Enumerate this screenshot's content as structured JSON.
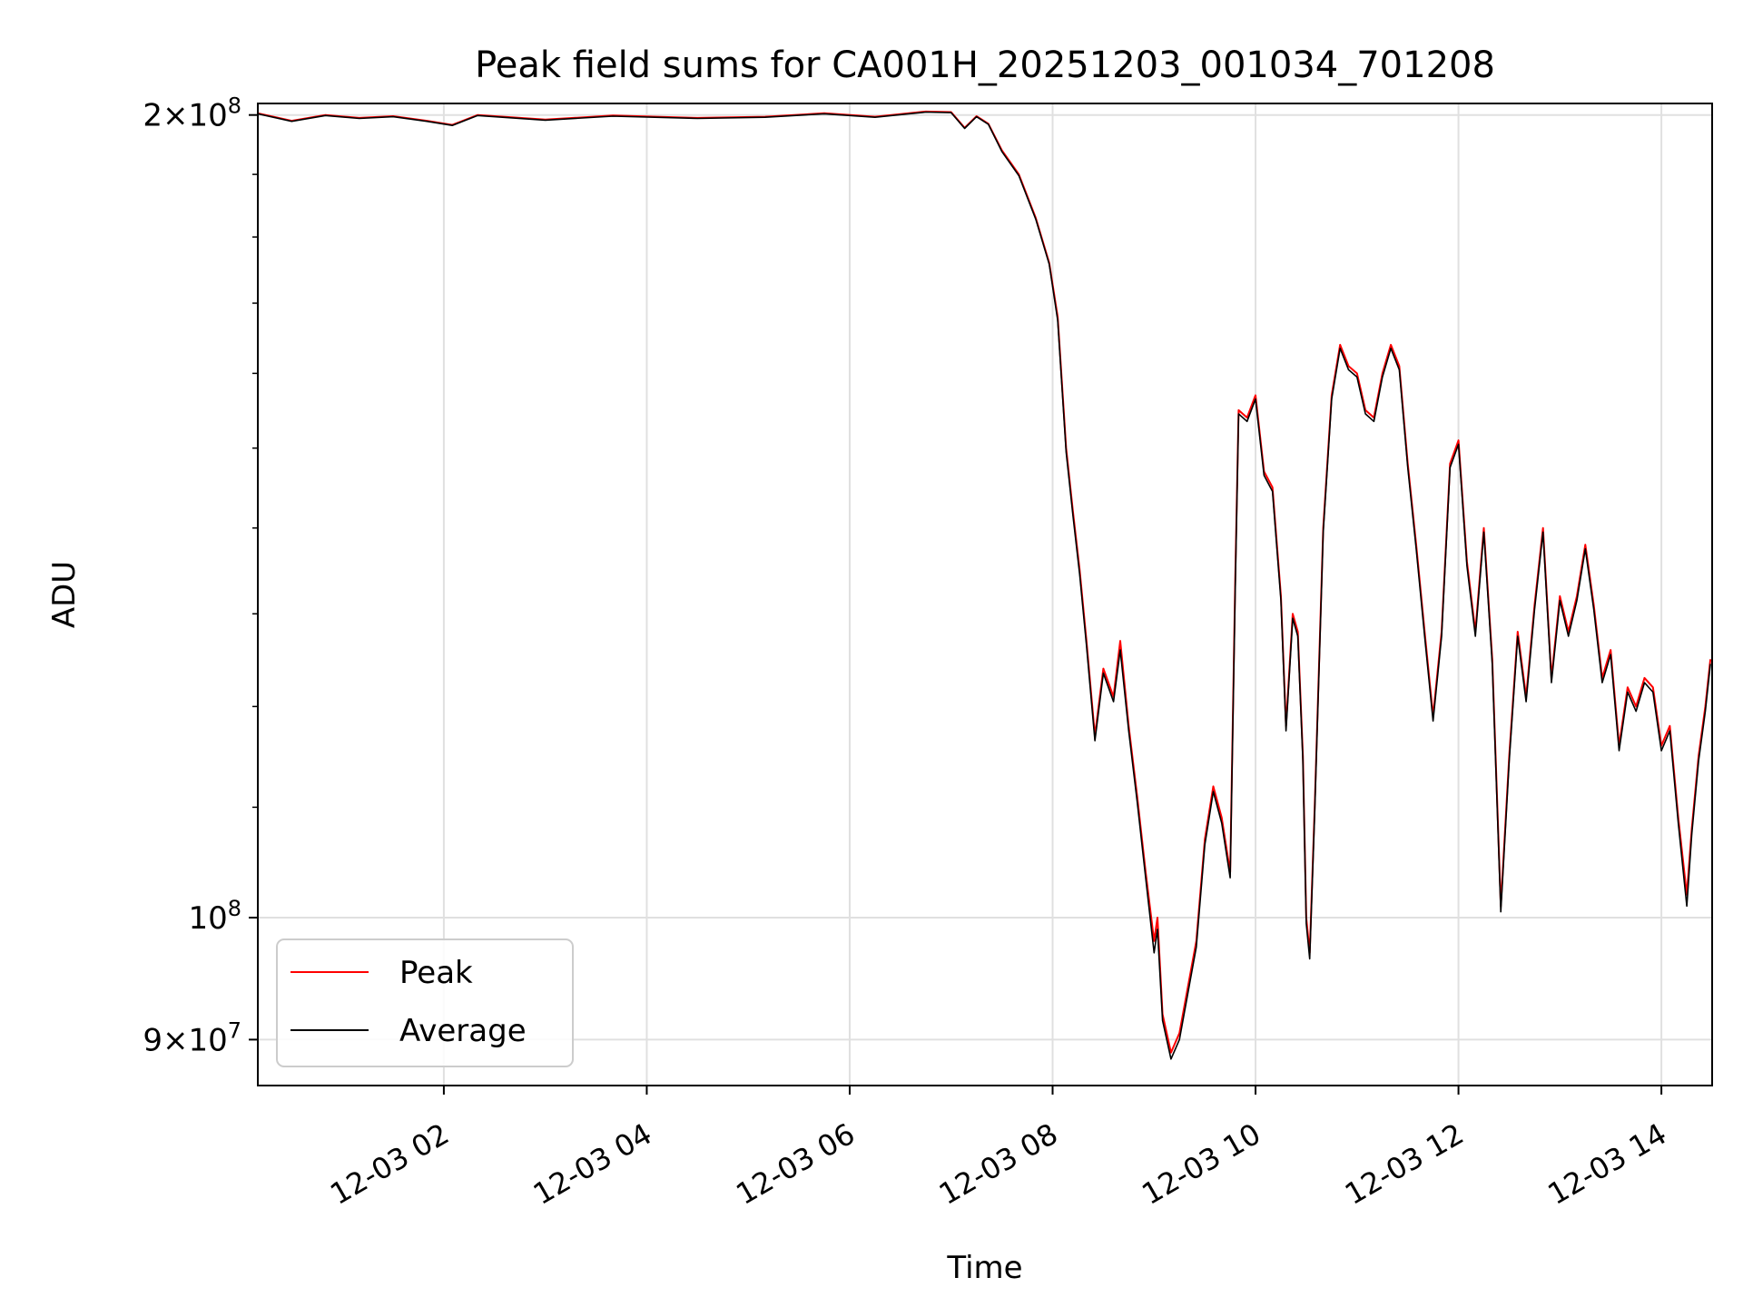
{
  "chart_data": {
    "type": "line",
    "title": "Peak field sums for CA001H_20251203_001034_701208",
    "xlabel": "Time",
    "ylabel": "ADU",
    "y_scale": "log",
    "x_range": [
      "12-03 00:10",
      "12-03 14:30"
    ],
    "ylim": [
      86500000,
      202000000
    ],
    "x_ticks": [
      {
        "value": "12-03 02:00",
        "label": "12-03 02"
      },
      {
        "value": "12-03 04:00",
        "label": "12-03 04"
      },
      {
        "value": "12-03 06:00",
        "label": "12-03 06"
      },
      {
        "value": "12-03 08:00",
        "label": "12-03 08"
      },
      {
        "value": "12-03 10:00",
        "label": "12-03 10"
      },
      {
        "value": "12-03 12:00",
        "label": "12-03 12"
      },
      {
        "value": "12-03 14:00",
        "label": "12-03 14"
      }
    ],
    "y_ticks_major": [
      {
        "value": 200000000,
        "mantissa": "2",
        "exponent": "8"
      },
      {
        "value": 100000000,
        "mantissa": "",
        "exponent": "8"
      },
      {
        "value": 90000000,
        "mantissa": "9",
        "exponent": "7"
      }
    ],
    "y_ticks_minor": [
      110000000,
      120000000,
      130000000,
      140000000,
      150000000,
      160000000,
      170000000,
      180000000,
      190000000
    ],
    "grid": true,
    "legend_position": "lower-left",
    "colors": {
      "peak": "#ff0000",
      "average": "#000000",
      "grid": "#e0e0e0"
    },
    "series": [
      {
        "name": "Peak",
        "color": "#ff0000",
        "points": [
          [
            "12-03 00:10",
            200300000
          ],
          [
            "12-03 00:30",
            199000000
          ],
          [
            "12-03 00:50",
            200000000
          ],
          [
            "12-03 01:10",
            199500000
          ],
          [
            "12-03 01:30",
            199800000
          ],
          [
            "12-03 01:50",
            199000000
          ],
          [
            "12-03 02:05",
            198300000
          ],
          [
            "12-03 02:20",
            200000000
          ],
          [
            "12-03 03:00",
            199200000
          ],
          [
            "12-03 03:40",
            199900000
          ],
          [
            "12-03 04:30",
            199500000
          ],
          [
            "12-03 05:10",
            199700000
          ],
          [
            "12-03 05:45",
            200300000
          ],
          [
            "12-03 06:15",
            199700000
          ],
          [
            "12-03 06:45",
            200600000
          ],
          [
            "12-03 07:00",
            200500000
          ],
          [
            "12-03 07:08",
            197800000
          ],
          [
            "12-03 07:15",
            199800000
          ],
          [
            "12-03 07:22",
            198500000
          ],
          [
            "12-03 07:30",
            194000000
          ],
          [
            "12-03 07:40",
            190000000
          ],
          [
            "12-03 07:50",
            183000000
          ],
          [
            "12-03 07:58",
            176000000
          ],
          [
            "12-03 08:03",
            168000000
          ],
          [
            "12-03 08:08",
            150000000
          ],
          [
            "12-03 08:12",
            142000000
          ],
          [
            "12-03 08:16",
            135000000
          ],
          [
            "12-03 08:20",
            127000000
          ],
          [
            "12-03 08:25",
            117000000
          ],
          [
            "12-03 08:30",
            124000000
          ],
          [
            "12-03 08:36",
            121000000
          ],
          [
            "12-03 08:40",
            127000000
          ],
          [
            "12-03 08:45",
            118000000
          ],
          [
            "12-03 08:50",
            111000000
          ],
          [
            "12-03 08:55",
            104000000
          ],
          [
            "12-03 09:00",
            98000000
          ],
          [
            "12-03 09:02",
            100000000
          ],
          [
            "12-03 09:05",
            92000000
          ],
          [
            "12-03 09:10",
            89000000
          ],
          [
            "12-03 09:15",
            90500000
          ],
          [
            "12-03 09:25",
            98000000
          ],
          [
            "12-03 09:30",
            107000000
          ],
          [
            "12-03 09:35",
            112000000
          ],
          [
            "12-03 09:40",
            109000000
          ],
          [
            "12-03 09:45",
            104000000
          ],
          [
            "12-03 09:48",
            134000000
          ],
          [
            "12-03 09:50",
            155000000
          ],
          [
            "12-03 09:55",
            154000000
          ],
          [
            "12-03 10:00",
            157000000
          ],
          [
            "12-03 10:05",
            147000000
          ],
          [
            "12-03 10:10",
            145000000
          ],
          [
            "12-03 10:15",
            132000000
          ],
          [
            "12-03 10:18",
            118000000
          ],
          [
            "12-03 10:22",
            130000000
          ],
          [
            "12-03 10:25",
            128000000
          ],
          [
            "12-03 10:28",
            115000000
          ],
          [
            "12-03 10:30",
            100000000
          ],
          [
            "12-03 10:32",
            97000000
          ],
          [
            "12-03 10:35",
            110000000
          ],
          [
            "12-03 10:40",
            140000000
          ],
          [
            "12-03 10:45",
            157000000
          ],
          [
            "12-03 10:50",
            164000000
          ],
          [
            "12-03 10:55",
            161000000
          ],
          [
            "12-03 11:00",
            160000000
          ],
          [
            "12-03 11:05",
            155000000
          ],
          [
            "12-03 11:10",
            154000000
          ],
          [
            "12-03 11:15",
            160000000
          ],
          [
            "12-03 11:20",
            164000000
          ],
          [
            "12-03 11:25",
            161000000
          ],
          [
            "12-03 11:30",
            148000000
          ],
          [
            "12-03 11:35",
            138000000
          ],
          [
            "12-03 11:40",
            128000000
          ],
          [
            "12-03 11:45",
            119000000
          ],
          [
            "12-03 11:50",
            128000000
          ],
          [
            "12-03 11:55",
            148000000
          ],
          [
            "12-03 12:00",
            151000000
          ],
          [
            "12-03 12:05",
            136000000
          ],
          [
            "12-03 12:10",
            128000000
          ],
          [
            "12-03 12:15",
            140000000
          ],
          [
            "12-03 12:20",
            125000000
          ],
          [
            "12-03 12:25",
            101000000
          ],
          [
            "12-03 12:30",
            115000000
          ],
          [
            "12-03 12:35",
            128000000
          ],
          [
            "12-03 12:40",
            121000000
          ],
          [
            "12-03 12:45",
            131000000
          ],
          [
            "12-03 12:50",
            140000000
          ],
          [
            "12-03 12:55",
            123000000
          ],
          [
            "12-03 13:00",
            132000000
          ],
          [
            "12-03 13:05",
            128000000
          ],
          [
            "12-03 13:10",
            132000000
          ],
          [
            "12-03 13:15",
            138000000
          ],
          [
            "12-03 13:20",
            131000000
          ],
          [
            "12-03 13:25",
            123000000
          ],
          [
            "12-03 13:30",
            126000000
          ],
          [
            "12-03 13:35",
            116000000
          ],
          [
            "12-03 13:40",
            122000000
          ],
          [
            "12-03 13:45",
            120000000
          ],
          [
            "12-03 13:50",
            123000000
          ],
          [
            "12-03 13:55",
            122000000
          ],
          [
            "12-03 14:00",
            116000000
          ],
          [
            "12-03 14:05",
            118000000
          ],
          [
            "12-03 14:10",
            109000000
          ],
          [
            "12-03 14:15",
            102000000
          ],
          [
            "12-03 14:18",
            108000000
          ],
          [
            "12-03 14:22",
            115000000
          ],
          [
            "12-03 14:26",
            120000000
          ],
          [
            "12-03 14:29",
            125000000
          ]
        ]
      },
      {
        "name": "Average",
        "color": "#000000",
        "points": [
          [
            "12-03 00:10",
            200200000
          ],
          [
            "12-03 00:30",
            198900000
          ],
          [
            "12-03 00:50",
            199900000
          ],
          [
            "12-03 01:10",
            199400000
          ],
          [
            "12-03 01:30",
            199700000
          ],
          [
            "12-03 01:50",
            198900000
          ],
          [
            "12-03 02:05",
            198200000
          ],
          [
            "12-03 02:20",
            199900000
          ],
          [
            "12-03 03:00",
            199100000
          ],
          [
            "12-03 03:40",
            199800000
          ],
          [
            "12-03 04:30",
            199400000
          ],
          [
            "12-03 05:10",
            199600000
          ],
          [
            "12-03 05:45",
            200200000
          ],
          [
            "12-03 06:15",
            199600000
          ],
          [
            "12-03 06:45",
            200500000
          ],
          [
            "12-03 07:00",
            200400000
          ],
          [
            "12-03 07:08",
            197700000
          ],
          [
            "12-03 07:15",
            199700000
          ],
          [
            "12-03 07:22",
            198400000
          ],
          [
            "12-03 07:30",
            193800000
          ],
          [
            "12-03 07:40",
            189800000
          ],
          [
            "12-03 07:50",
            182800000
          ],
          [
            "12-03 07:58",
            175800000
          ],
          [
            "12-03 08:03",
            167500000
          ],
          [
            "12-03 08:08",
            149500000
          ],
          [
            "12-03 08:12",
            141500000
          ],
          [
            "12-03 08:16",
            134500000
          ],
          [
            "12-03 08:20",
            126500000
          ],
          [
            "12-03 08:25",
            116500000
          ],
          [
            "12-03 08:30",
            123500000
          ],
          [
            "12-03 08:36",
            120500000
          ],
          [
            "12-03 08:40",
            126000000
          ],
          [
            "12-03 08:45",
            117500000
          ],
          [
            "12-03 08:50",
            110500000
          ],
          [
            "12-03 08:55",
            103500000
          ],
          [
            "12-03 09:00",
            97000000
          ],
          [
            "12-03 09:02",
            99000000
          ],
          [
            "12-03 09:05",
            91500000
          ],
          [
            "12-03 09:10",
            88500000
          ],
          [
            "12-03 09:15",
            90000000
          ],
          [
            "12-03 09:25",
            97500000
          ],
          [
            "12-03 09:30",
            106500000
          ],
          [
            "12-03 09:35",
            111500000
          ],
          [
            "12-03 09:40",
            108500000
          ],
          [
            "12-03 09:45",
            103500000
          ],
          [
            "12-03 09:48",
            133000000
          ],
          [
            "12-03 09:50",
            154500000
          ],
          [
            "12-03 09:55",
            153500000
          ],
          [
            "12-03 10:00",
            156500000
          ],
          [
            "12-03 10:05",
            146500000
          ],
          [
            "12-03 10:10",
            144500000
          ],
          [
            "12-03 10:15",
            131500000
          ],
          [
            "12-03 10:18",
            117500000
          ],
          [
            "12-03 10:22",
            129500000
          ],
          [
            "12-03 10:25",
            127500000
          ],
          [
            "12-03 10:28",
            114500000
          ],
          [
            "12-03 10:30",
            99500000
          ],
          [
            "12-03 10:32",
            96500000
          ],
          [
            "12-03 10:35",
            109500000
          ],
          [
            "12-03 10:40",
            139500000
          ],
          [
            "12-03 10:45",
            156500000
          ],
          [
            "12-03 10:50",
            163500000
          ],
          [
            "12-03 10:55",
            160500000
          ],
          [
            "12-03 11:00",
            159500000
          ],
          [
            "12-03 11:05",
            154500000
          ],
          [
            "12-03 11:10",
            153500000
          ],
          [
            "12-03 11:15",
            159500000
          ],
          [
            "12-03 11:20",
            163500000
          ],
          [
            "12-03 11:25",
            160500000
          ],
          [
            "12-03 11:30",
            147500000
          ],
          [
            "12-03 11:35",
            137500000
          ],
          [
            "12-03 11:40",
            127500000
          ],
          [
            "12-03 11:45",
            118500000
          ],
          [
            "12-03 11:50",
            127500000
          ],
          [
            "12-03 11:55",
            147500000
          ],
          [
            "12-03 12:00",
            150500000
          ],
          [
            "12-03 12:05",
            135500000
          ],
          [
            "12-03 12:10",
            127500000
          ],
          [
            "12-03 12:15",
            139500000
          ],
          [
            "12-03 12:20",
            124500000
          ],
          [
            "12-03 12:25",
            100500000
          ],
          [
            "12-03 12:30",
            114500000
          ],
          [
            "12-03 12:35",
            127500000
          ],
          [
            "12-03 12:40",
            120500000
          ],
          [
            "12-03 12:45",
            130500000
          ],
          [
            "12-03 12:50",
            139500000
          ],
          [
            "12-03 12:55",
            122500000
          ],
          [
            "12-03 13:00",
            131500000
          ],
          [
            "12-03 13:05",
            127500000
          ],
          [
            "12-03 13:10",
            131500000
          ],
          [
            "12-03 13:15",
            137500000
          ],
          [
            "12-03 13:20",
            130500000
          ],
          [
            "12-03 13:25",
            122500000
          ],
          [
            "12-03 13:30",
            125500000
          ],
          [
            "12-03 13:35",
            115500000
          ],
          [
            "12-03 13:40",
            121500000
          ],
          [
            "12-03 13:45",
            119500000
          ],
          [
            "12-03 13:50",
            122500000
          ],
          [
            "12-03 13:55",
            121500000
          ],
          [
            "12-03 14:00",
            115500000
          ],
          [
            "12-03 14:05",
            117500000
          ],
          [
            "12-03 14:10",
            108500000
          ],
          [
            "12-03 14:15",
            101000000
          ],
          [
            "12-03 14:18",
            107500000
          ],
          [
            "12-03 14:22",
            114500000
          ],
          [
            "12-03 14:26",
            119500000
          ],
          [
            "12-03 14:29",
            124500000
          ]
        ]
      }
    ]
  }
}
